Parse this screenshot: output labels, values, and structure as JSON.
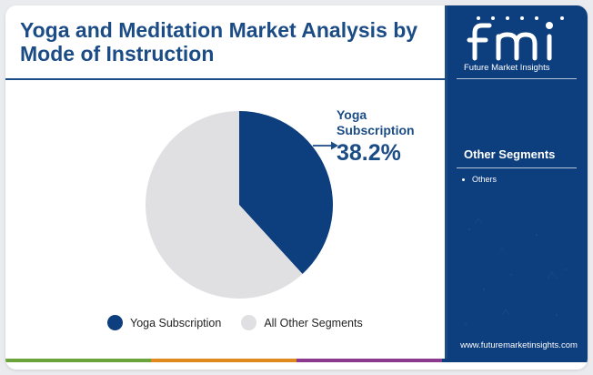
{
  "title": "Yoga and Meditation Market Analysis by Mode of Instruction",
  "callout": {
    "name": "Yoga Subscription",
    "value": "38.2%"
  },
  "legend": [
    {
      "label": "Yoga Subscription",
      "color": "#0d3e7e"
    },
    {
      "label": "All Other Segments",
      "color": "#e0e0e3"
    }
  ],
  "side_panel": {
    "brand_name": "Future Market Insights",
    "heading": "Other Segments",
    "items": [
      "Others"
    ],
    "url": "www.futuremarketinsights.com"
  },
  "colors": {
    "primary": "#0d3e7e",
    "secondary": "#e0e0e3",
    "bar": [
      "#6aa43a",
      "#e08a1e",
      "#8b3a8f",
      "#0d3e7e"
    ]
  },
  "chart_data": {
    "type": "pie",
    "title": "Yoga and Meditation Market Analysis by Mode of Instruction",
    "slices": [
      {
        "label": "Yoga Subscription",
        "value": 38.2,
        "color": "#0d3e7e"
      },
      {
        "label": "All Other Segments",
        "value": 61.8,
        "color": "#e0e0e3"
      }
    ],
    "data_labels": [
      {
        "label": "Yoga Subscription",
        "value": "38.2%"
      }
    ],
    "legend_position": "bottom",
    "start_angle": "12 o'clock",
    "direction": "clockwise"
  }
}
